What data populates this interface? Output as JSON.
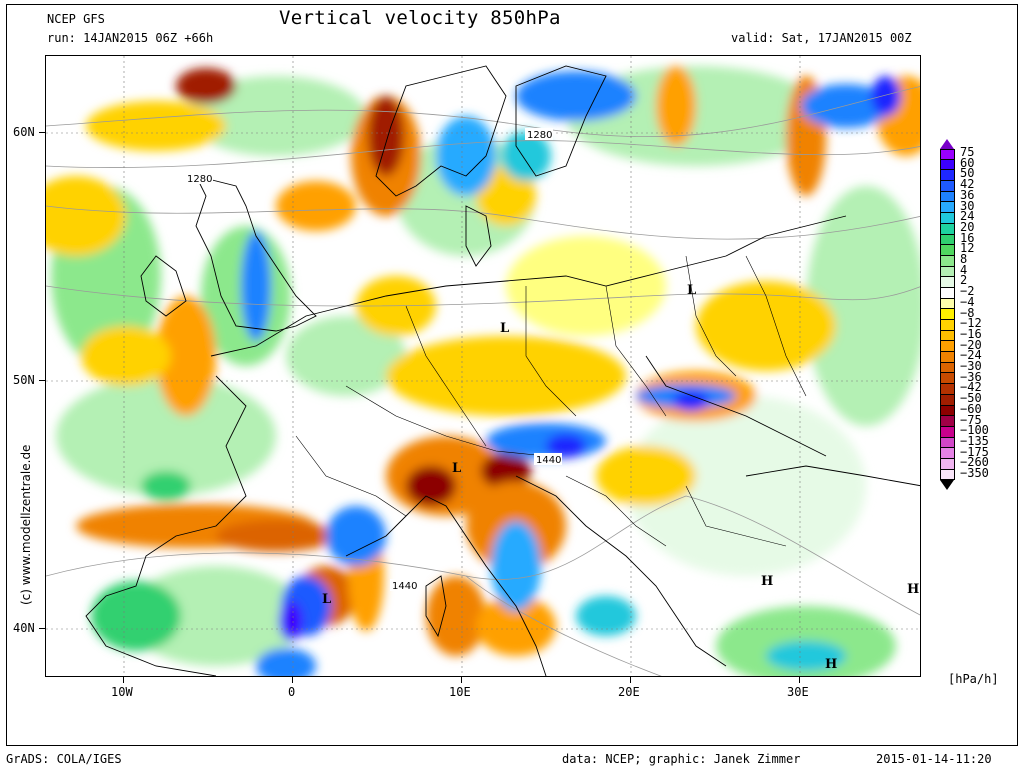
{
  "header": {
    "model": "NCEP GFS",
    "title": "Vertical velocity 850hPa",
    "run": "run: 14JAN2015 06Z +66h",
    "valid": "valid: Sat, 17JAN2015 00Z"
  },
  "footer": {
    "grads": "GrADS: COLA/IGES",
    "credits": "data: NCEP; graphic: Janek Zimmer",
    "timestamp": "2015-01-14-11:20"
  },
  "watermark": "(c)  www.modellzentrale.de",
  "axes": {
    "lon_labels": [
      "10W",
      "0",
      "10E",
      "20E",
      "30E"
    ],
    "lat_labels": [
      "60N",
      "50N",
      "40N"
    ]
  },
  "legend": {
    "unit": "[hPa/h]",
    "labels": [
      "75",
      "60",
      "50",
      "42",
      "36",
      "30",
      "24",
      "20",
      "16",
      "12",
      "8",
      "4",
      "2",
      "−2",
      "−4",
      "−8",
      "−12",
      "−16",
      "−20",
      "−24",
      "−30",
      "−36",
      "−42",
      "−50",
      "−60",
      "−75",
      "−100",
      "−135",
      "−175",
      "−260",
      "−350"
    ],
    "colors": [
      "#9a00ff",
      "#3c00ff",
      "#1e28ff",
      "#1e5aff",
      "#1e82ff",
      "#28aaff",
      "#20c8dc",
      "#1ed2a0",
      "#30d070",
      "#50d860",
      "#8ce88c",
      "#b4f0b4",
      "#e6fae6",
      "#ffffff",
      "#ffffaa",
      "#fff000",
      "#ffd200",
      "#ffbe00",
      "#ffa000",
      "#f08200",
      "#dc6400",
      "#c84b00",
      "#b43200",
      "#a01e00",
      "#8c0000",
      "#a00046",
      "#c8008c",
      "#d246c8",
      "#e682e6",
      "#f0b4f0",
      "#fae6fa"
    ],
    "top_arrow_color": "#7800c8",
    "bottom_arrow_color": "#ffffff"
  },
  "map_labels": {
    "isobars": [
      "1280",
      "1280",
      "1440",
      "1440"
    ],
    "pressure_centers": [
      "L",
      "L",
      "L",
      "L",
      "H",
      "H",
      "H"
    ]
  }
}
